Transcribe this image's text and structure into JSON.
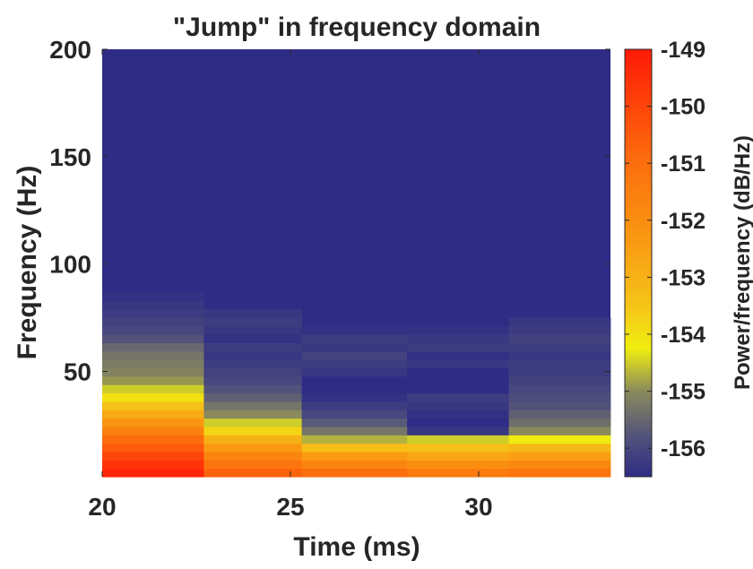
{
  "chart_data": {
    "type": "heatmap",
    "title": "\"Jump\" in frequency domain",
    "xlabel": "Time (ms)",
    "ylabel": "Frequency (Hz)",
    "xlim": [
      20,
      33.5
    ],
    "ylim": [
      1,
      200
    ],
    "xticks": [
      20,
      25,
      30
    ],
    "yticks": [
      50,
      100,
      150,
      200
    ],
    "colorbar": {
      "label": "Power/frequency (dB/Hz)",
      "range": [
        -156.5,
        -149
      ],
      "ticks": [
        -156,
        -155,
        -154,
        -153,
        -152,
        -151,
        -150,
        -149
      ]
    },
    "grid": false,
    "legend": "none",
    "freq_bin_hz": 3.9,
    "segments": [
      {
        "t_start": 20,
        "t_end": 22.7,
        "power_db": [
          -149.3,
          -149.6,
          -150,
          -150.5,
          -151,
          -151.6,
          -152.2,
          -152.8,
          -153.4,
          -154,
          -154.5,
          -154.9,
          -155.1,
          -155.2,
          -155.3,
          -155.5,
          -155.8,
          -156,
          -156.1,
          -156.2,
          -156.3,
          -156.4
        ]
      },
      {
        "t_start": 22.7,
        "t_end": 25.3,
        "power_db": [
          -150.7,
          -151.2,
          -151.7,
          -152.3,
          -153,
          -153.8,
          -154.5,
          -155,
          -155.3,
          -155.6,
          -155.8,
          -156,
          -156.1,
          -156.2,
          -156.3,
          -156.2,
          -156.4,
          -156.3,
          -156.2,
          -156.3
        ]
      },
      {
        "t_start": 25.3,
        "t_end": 28.1,
        "power_db": [
          -151,
          -151.7,
          -152.4,
          -153.3,
          -154.7,
          -155.3,
          -155.7,
          -156,
          -156.2,
          -156.4,
          -156.5,
          -156.5,
          -156.3,
          -156.2,
          -156.1,
          -156.3,
          -156.2,
          -156.4
        ]
      },
      {
        "t_start": 28.1,
        "t_end": 30.8,
        "power_db": [
          -151.4,
          -152,
          -152.7,
          -153.4,
          -154.5,
          -156.3,
          -156.5,
          -156.4,
          -156.3,
          -156.2,
          -156.5,
          -156.5,
          -156.5,
          -156.3,
          -156.4,
          -156.2,
          -156.3,
          -156.4
        ]
      },
      {
        "t_start": 30.8,
        "t_end": 33.5,
        "power_db": [
          -151.2,
          -151.8,
          -152.5,
          -153.2,
          -154.2,
          -155,
          -155.4,
          -155.6,
          -155.8,
          -155.9,
          -156,
          -156.1,
          -156.2,
          -156.2,
          -156.3,
          -156.2,
          -156.1,
          -156.2,
          -156.3
        ]
      }
    ],
    "background_db": -156.5
  }
}
